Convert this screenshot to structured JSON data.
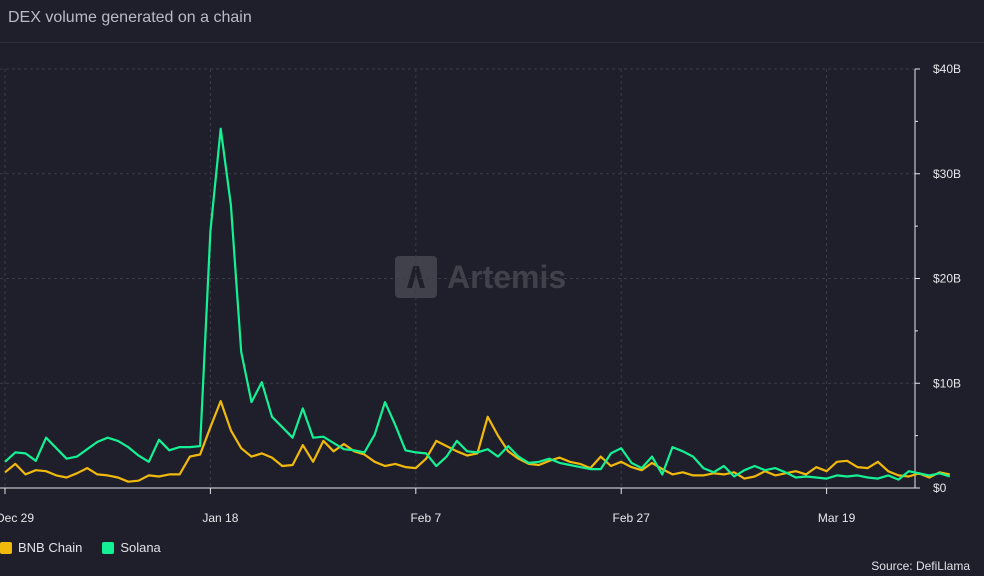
{
  "title": "DEX volume generated on a chain",
  "watermark": "Artemis",
  "source": "Source: DefiLlama",
  "colors": {
    "bnb": "#f0b90b",
    "solana": "#14f195"
  },
  "chart_data": {
    "type": "line",
    "x_tick_labels": [
      "Dec 29",
      "Jan 18",
      "Feb 7",
      "Feb 27",
      "Mar 19"
    ],
    "y_tick_labels": [
      "$0",
      "$10B",
      "$20B",
      "$30B",
      "$40B"
    ],
    "ylim": [
      0,
      40
    ],
    "y_unit": "B USD",
    "grid": true,
    "legend_position": "bottom-left",
    "x_start": "2023-12-29",
    "series": [
      {
        "name": "BNB Chain",
        "color": "#f0b90b",
        "values": [
          1.5,
          2.3,
          1.3,
          1.7,
          1.6,
          1.2,
          1.0,
          1.4,
          1.9,
          1.3,
          1.2,
          1.0,
          0.6,
          0.7,
          1.2,
          1.1,
          1.3,
          1.3,
          3.0,
          3.2,
          5.8,
          8.3,
          5.5,
          3.8,
          3.0,
          3.3,
          2.9,
          2.1,
          2.2,
          4.1,
          2.5,
          4.5,
          3.5,
          4.2,
          3.5,
          3.2,
          2.5,
          2.1,
          2.3,
          2.0,
          1.9,
          2.8,
          4.5,
          4.0,
          3.5,
          3.1,
          3.3,
          6.8,
          5.0,
          3.5,
          2.8,
          2.3,
          2.2,
          2.6,
          2.9,
          2.5,
          2.3,
          1.9,
          3.0,
          2.1,
          2.5,
          2.0,
          1.7,
          2.4,
          1.8,
          1.3,
          1.5,
          1.2,
          1.2,
          1.4,
          1.3,
          1.5,
          0.9,
          1.1,
          1.6,
          1.2,
          1.4,
          1.6,
          1.3,
          2.0,
          1.6,
          2.5,
          2.6,
          2.0,
          1.9,
          2.5,
          1.6,
          1.2,
          1.1,
          1.4,
          1.0,
          1.5,
          1.3
        ]
      },
      {
        "name": "Solana",
        "color": "#14f195",
        "values": [
          2.5,
          3.4,
          3.3,
          2.6,
          4.8,
          3.8,
          2.8,
          3.0,
          3.7,
          4.4,
          4.8,
          4.5,
          3.9,
          3.1,
          2.5,
          4.6,
          3.6,
          3.9,
          3.9,
          4.0,
          24.5,
          34.3,
          27.0,
          13.0,
          8.2,
          10.1,
          6.8,
          5.8,
          4.8,
          7.6,
          4.8,
          4.9,
          4.3,
          3.7,
          3.6,
          3.4,
          5.1,
          8.2,
          6.0,
          3.6,
          3.4,
          3.3,
          2.1,
          3.0,
          4.5,
          3.5,
          3.4,
          3.7,
          3.0,
          4.0,
          3.0,
          2.4,
          2.5,
          2.8,
          2.4,
          2.2,
          2.0,
          1.8,
          1.8,
          3.3,
          3.8,
          2.4,
          1.9,
          3.0,
          1.3,
          3.9,
          3.5,
          3.0,
          1.9,
          1.5,
          2.1,
          1.1,
          1.7,
          2.1,
          1.7,
          1.9,
          1.5,
          1.0,
          1.1,
          1.0,
          0.9,
          1.2,
          1.1,
          1.2,
          1.0,
          0.9,
          1.2,
          0.8,
          1.6,
          1.4,
          1.2,
          1.4,
          1.1
        ]
      }
    ]
  }
}
